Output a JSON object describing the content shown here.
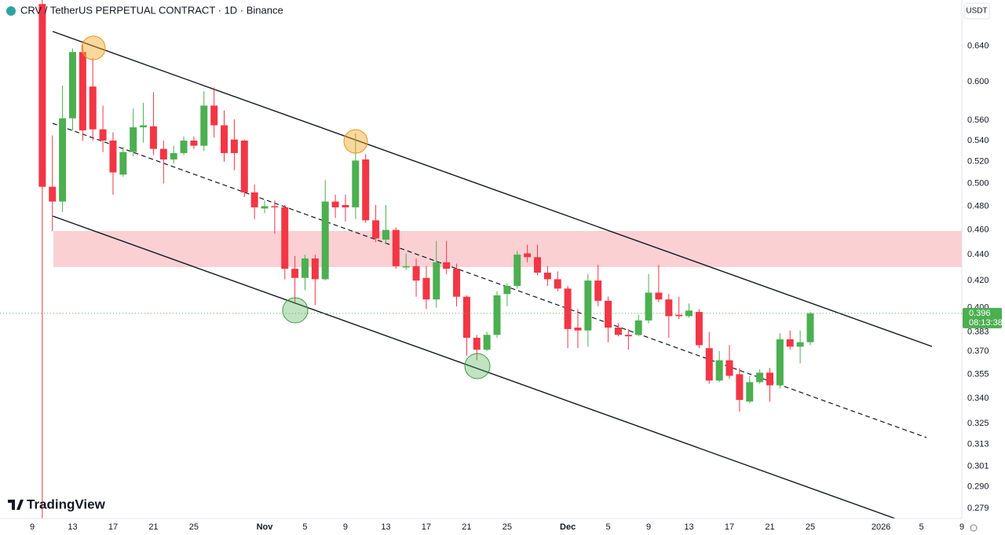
{
  "header": {
    "title": "CRV / TetherUS PERPETUAL CONTRACT · 1D · Binance",
    "currency": "USDT"
  },
  "chart_data": {
    "type": "candlestick",
    "categories": [
      "9",
      null,
      null,
      null,
      "13",
      null,
      null,
      null,
      "17",
      null,
      null,
      null,
      "21",
      null,
      null,
      null,
      "25",
      null,
      null,
      null,
      null,
      null,
      null,
      "Nov",
      null,
      null,
      null,
      "5",
      null,
      null,
      null,
      "9",
      null,
      null,
      null,
      "13",
      null,
      null,
      null,
      "17",
      null,
      null,
      null,
      "21",
      null,
      null,
      null,
      "25",
      null,
      null,
      null,
      null,
      null,
      "Dec",
      null,
      null,
      null,
      "5",
      null,
      null,
      null,
      "9",
      null,
      null,
      null,
      "13",
      null,
      null,
      null,
      "17",
      null,
      null,
      null,
      "21",
      null,
      null,
      null,
      "25",
      null,
      null,
      null,
      null,
      null,
      null,
      "2026",
      null,
      null,
      null,
      "5",
      null,
      null,
      null,
      "9"
    ],
    "open": [
      null,
      0.69,
      0.497,
      0.484,
      0.562,
      0.633,
      0.595,
      0.551,
      0.54,
      0.508,
      0.529,
      0.553,
      0.554,
      0.532,
      0.522,
      0.528,
      0.54,
      0.535,
      0.575,
      0.555,
      0.541,
      0.54,
      0.492,
      0.478,
      0.48,
      0.479,
      0.429,
      0.422,
      0.437,
      0.421,
      0.484,
      0.481,
      0.479,
      0.522,
      0.468,
      0.452,
      0.46,
      0.43,
      0.431,
      0.422,
      0.406,
      0.434,
      0.429,
      0.408,
      0.379,
      0.371,
      0.381,
      0.41,
      0.416,
      0.441,
      0.438,
      0.426,
      0.421,
      0.414,
      0.386,
      0.384,
      0.42,
      0.405,
      0.386,
      0.381,
      0.381,
      0.391,
      0.411,
      0.406,
      0.395,
      0.394,
      0.397,
      0.372,
      0.351,
      0.364,
      0.355,
      0.338,
      0.35,
      0.356,
      0.348,
      0.378,
      0.373,
      0.376,
      null,
      null,
      null,
      null,
      null,
      null,
      null,
      null,
      null,
      null,
      null,
      null,
      null,
      null,
      null
    ],
    "high": [
      null,
      0.7,
      0.545,
      0.596,
      0.637,
      0.642,
      0.626,
      0.575,
      0.548,
      0.534,
      0.572,
      0.578,
      0.589,
      0.54,
      0.535,
      0.544,
      0.544,
      0.59,
      0.594,
      0.57,
      0.561,
      0.541,
      0.499,
      0.485,
      0.485,
      0.481,
      0.439,
      0.44,
      0.44,
      0.503,
      0.49,
      0.49,
      0.547,
      0.527,
      0.481,
      0.481,
      0.462,
      0.441,
      0.437,
      0.431,
      0.451,
      0.451,
      0.433,
      0.409,
      0.381,
      0.383,
      0.412,
      0.418,
      0.443,
      0.448,
      0.448,
      0.431,
      0.427,
      0.416,
      0.399,
      0.425,
      0.432,
      0.408,
      0.389,
      0.385,
      0.395,
      0.425,
      0.432,
      0.41,
      0.408,
      0.403,
      0.399,
      0.383,
      0.37,
      0.374,
      0.359,
      0.354,
      0.358,
      0.359,
      0.382,
      0.384,
      0.384,
      0.397,
      null,
      null,
      null,
      null,
      null,
      null,
      null,
      null,
      null,
      null,
      null,
      null,
      null,
      null,
      null
    ],
    "low": [
      null,
      0.26,
      0.459,
      0.475,
      0.55,
      0.54,
      0.54,
      0.529,
      0.49,
      0.506,
      0.525,
      0.538,
      0.526,
      0.5,
      0.518,
      0.526,
      0.532,
      0.53,
      0.543,
      0.52,
      0.512,
      0.488,
      0.469,
      0.474,
      0.457,
      0.421,
      0.404,
      0.413,
      0.402,
      0.42,
      0.47,
      0.467,
      0.469,
      0.466,
      0.45,
      0.449,
      0.429,
      0.428,
      0.408,
      0.399,
      0.4,
      0.425,
      0.401,
      0.367,
      0.364,
      0.37,
      0.379,
      0.401,
      0.414,
      0.434,
      0.424,
      0.416,
      0.412,
      0.372,
      0.372,
      0.373,
      0.401,
      0.376,
      0.38,
      0.371,
      0.38,
      0.389,
      0.404,
      0.379,
      0.392,
      0.393,
      0.372,
      0.349,
      0.35,
      0.352,
      0.332,
      0.337,
      0.349,
      0.338,
      0.346,
      0.371,
      0.362,
      0.374,
      null,
      null,
      null,
      null,
      null,
      null,
      null,
      null,
      null,
      null,
      null,
      null,
      null,
      null,
      null
    ],
    "close": [
      null,
      0.497,
      0.484,
      0.562,
      0.633,
      0.55,
      0.551,
      0.54,
      0.51,
      0.529,
      0.553,
      0.555,
      0.532,
      0.522,
      0.528,
      0.54,
      0.535,
      0.575,
      0.555,
      0.528,
      0.528,
      0.492,
      0.479,
      0.48,
      0.479,
      0.429,
      0.422,
      0.437,
      0.421,
      0.484,
      0.479,
      0.479,
      0.521,
      0.468,
      0.453,
      0.46,
      0.431,
      0.431,
      0.42,
      0.406,
      0.434,
      0.429,
      0.408,
      0.379,
      0.371,
      0.381,
      0.409,
      0.416,
      0.44,
      0.438,
      0.426,
      0.421,
      0.414,
      0.385,
      0.384,
      0.42,
      0.405,
      0.386,
      0.381,
      0.38,
      0.391,
      0.411,
      0.406,
      0.394,
      0.394,
      0.398,
      0.374,
      0.351,
      0.364,
      0.354,
      0.339,
      0.35,
      0.356,
      0.348,
      0.378,
      0.373,
      0.376,
      0.396,
      null,
      null,
      null,
      null,
      null,
      null,
      null,
      null,
      null,
      null,
      null,
      null,
      null,
      null,
      null
    ],
    "up_color": "#4caf50",
    "down_color": "#f23645",
    "ylim": [
      0.274,
      0.695
    ],
    "log_scale": true,
    "grid": false,
    "yticks": [
      {
        "value": 0.64,
        "label": "0.640"
      },
      {
        "value": 0.6,
        "label": "0.600"
      },
      {
        "value": 0.56,
        "label": "0.560"
      },
      {
        "value": 0.54,
        "label": "0.540"
      },
      {
        "value": 0.52,
        "label": "0.520"
      },
      {
        "value": 0.5,
        "label": "0.500"
      },
      {
        "value": 0.48,
        "label": "0.480"
      },
      {
        "value": 0.46,
        "label": "0.460"
      },
      {
        "value": 0.44,
        "label": "0.440"
      },
      {
        "value": 0.42,
        "label": "0.420"
      },
      {
        "value": 0.4,
        "label": "0.400"
      },
      0.383,
      {
        "value": 0.37,
        "label": "0.370"
      },
      0.355,
      {
        "value": 0.34,
        "label": "0.340"
      },
      0.325,
      0.313,
      0.301,
      {
        "value": 0.29,
        "label": "0.290"
      },
      0.279
    ],
    "last_price": 0.396,
    "countdown": "08:13:38"
  },
  "footer": {
    "logo": "TradingView"
  }
}
